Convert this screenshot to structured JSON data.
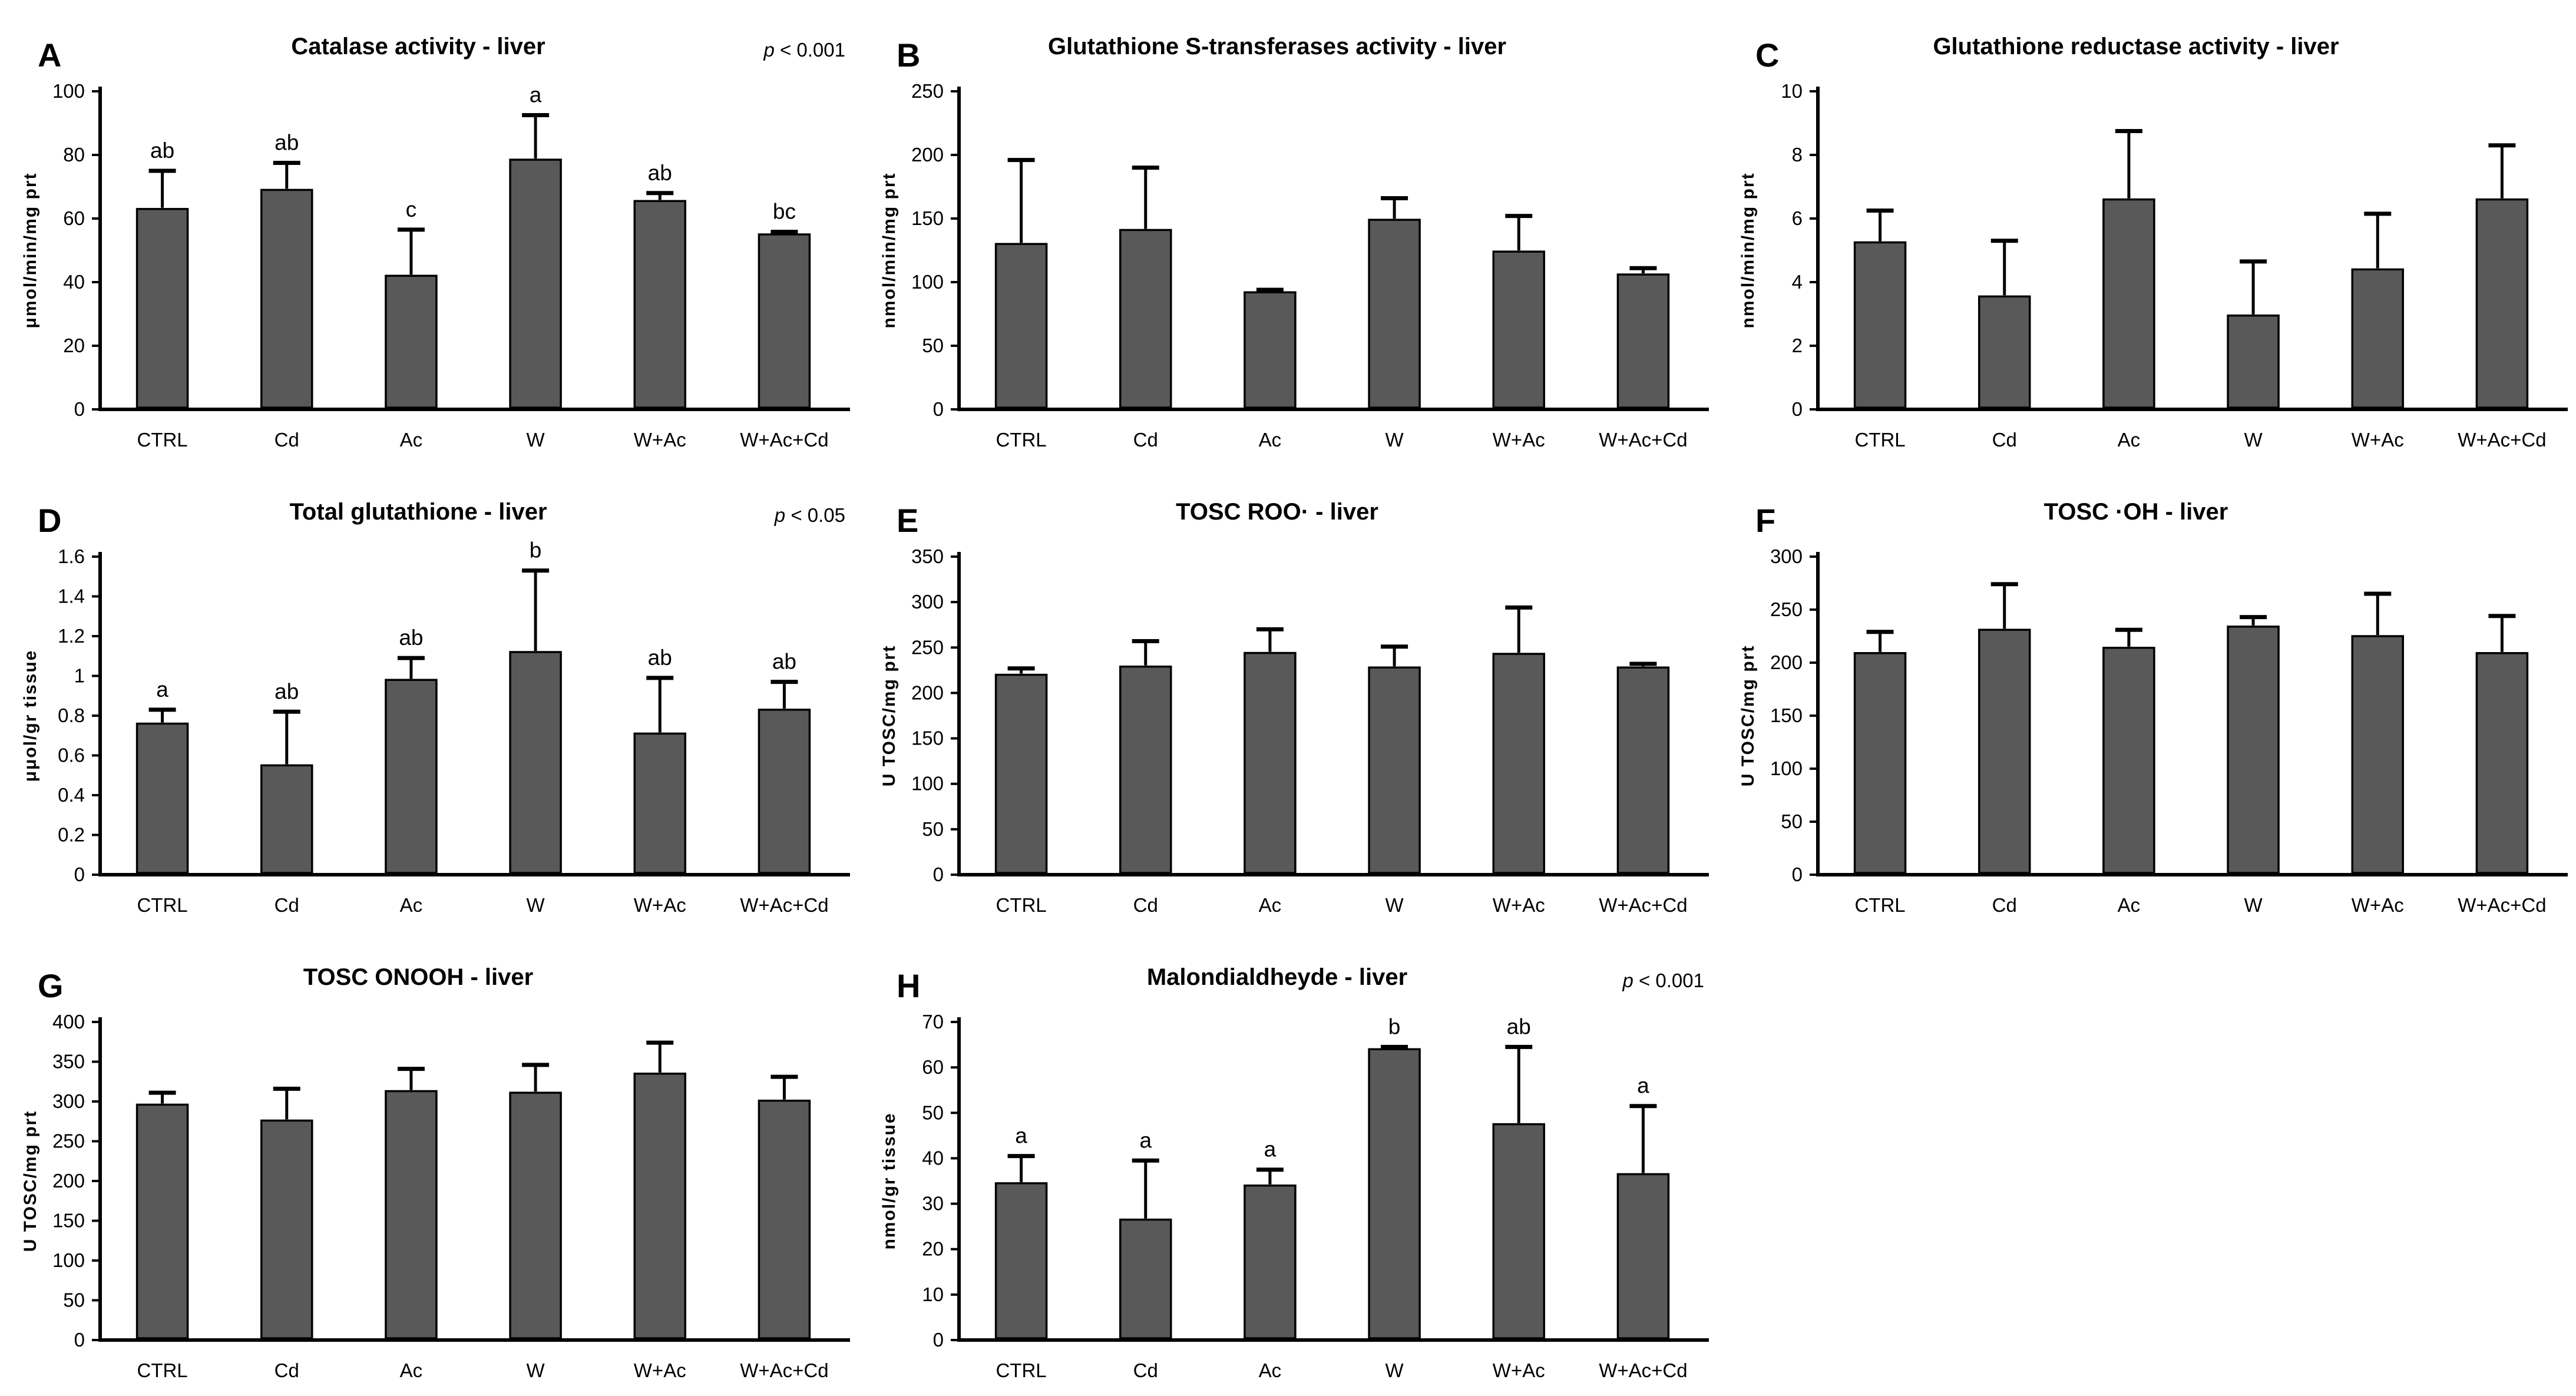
{
  "figure": {
    "bar_fill": "#595959",
    "bar_stroke": "#000000",
    "axis_color": "#000000",
    "text_color": "#000000",
    "background": "#ffffff"
  },
  "chart_data": [
    {
      "panel": "A",
      "type": "bar",
      "title": "Catalase activity - liver",
      "p_label": "p",
      "p_rest": " < 0.001",
      "ylabel": "μmol/min/mg prt",
      "ylim": [
        0,
        100
      ],
      "yticks": [
        0,
        20,
        40,
        60,
        80,
        100
      ],
      "ytick_labels": [
        "0",
        "20",
        "40",
        "60",
        "80",
        "100"
      ],
      "categories": [
        "CTRL",
        "Cd",
        "Ac",
        "W",
        "W+Ac",
        "W+Ac+Cd"
      ],
      "values": [
        63,
        69,
        42,
        78.5,
        65.5,
        55
      ],
      "errors_up": [
        12,
        8.5,
        14.5,
        14,
        2.5,
        0.8
      ],
      "sig_letters": [
        "ab",
        "ab",
        "c",
        "a",
        "ab",
        "bc"
      ],
      "legend": null,
      "grid": "off"
    },
    {
      "panel": "B",
      "type": "bar",
      "title": "Glutathione S-transferases activity - liver",
      "p_label": "",
      "p_rest": "",
      "ylabel": "nmol/min/mg prt",
      "ylim": [
        0,
        250
      ],
      "yticks": [
        0,
        50,
        100,
        150,
        200,
        250
      ],
      "ytick_labels": [
        "0",
        "50",
        "100",
        "150",
        "200",
        "250"
      ],
      "categories": [
        "CTRL",
        "Cd",
        "Ac",
        "W",
        "W+Ac",
        "W+Ac+Cd"
      ],
      "values": [
        130,
        141,
        92,
        149,
        124,
        106
      ],
      "errors_up": [
        66,
        49,
        2,
        17,
        28,
        5
      ],
      "sig_letters": null,
      "legend": null,
      "grid": "off"
    },
    {
      "panel": "C",
      "type": "bar",
      "title": "Glutathione reductase activity - liver",
      "p_label": "",
      "p_rest": "",
      "ylabel": "nmol/min/mg prt",
      "ylim": [
        0,
        10
      ],
      "yticks": [
        0,
        2,
        4,
        6,
        8,
        10
      ],
      "ytick_labels": [
        "0",
        "2",
        "4",
        "6",
        "8",
        "10"
      ],
      "categories": [
        "CTRL",
        "Cd",
        "Ac",
        "W",
        "W+Ac",
        "W+Ac+Cd"
      ],
      "values": [
        5.25,
        3.55,
        6.6,
        2.95,
        4.4,
        6.6
      ],
      "errors_up": [
        1.0,
        1.75,
        2.15,
        1.7,
        1.75,
        1.7
      ],
      "sig_letters": null,
      "legend": null,
      "grid": "off"
    },
    {
      "panel": "D",
      "type": "bar",
      "title": "Total glutathione - liver",
      "p_label": "p",
      "p_rest": " < 0.05",
      "ylabel": "μμol/gr tissue",
      "ylim": [
        0,
        1.6
      ],
      "yticks": [
        0,
        0.2,
        0.4,
        0.6,
        0.8,
        1,
        1.2,
        1.4,
        1.6
      ],
      "ytick_labels": [
        "0",
        "0.2",
        "0.4",
        "0.6",
        "0.8",
        "1",
        "1.2",
        "1.4",
        "1.6"
      ],
      "categories": [
        "CTRL",
        "Cd",
        "Ac",
        "W",
        "W+Ac",
        "W+Ac+Cd"
      ],
      "values": [
        0.76,
        0.55,
        0.98,
        1.12,
        0.71,
        0.83
      ],
      "errors_up": [
        0.07,
        0.27,
        0.11,
        0.41,
        0.28,
        0.14
      ],
      "sig_letters": [
        "a",
        "ab",
        "ab",
        "b",
        "ab",
        "ab"
      ],
      "legend": null,
      "grid": "off"
    },
    {
      "panel": "E",
      "type": "bar",
      "title": "TOSC ROO· - liver",
      "p_label": "",
      "p_rest": "",
      "ylabel": "U TOSC/mg prt",
      "ylim": [
        0,
        350
      ],
      "yticks": [
        0,
        50,
        100,
        150,
        200,
        250,
        300,
        350
      ],
      "ytick_labels": [
        "0",
        "50",
        "100",
        "150",
        "200",
        "250",
        "300",
        "350"
      ],
      "categories": [
        "CTRL",
        "Cd",
        "Ac",
        "W",
        "W+Ac",
        "W+Ac+Cd"
      ],
      "values": [
        220,
        229,
        244,
        228,
        243,
        228
      ],
      "errors_up": [
        7,
        28,
        26,
        23,
        51,
        4
      ],
      "sig_letters": null,
      "legend": null,
      "grid": "off"
    },
    {
      "panel": "F",
      "type": "bar",
      "title": "TOSC ·OH - liver",
      "p_label": "",
      "p_rest": "",
      "ylabel": "U TOSC/mg prt",
      "ylim": [
        0,
        300
      ],
      "yticks": [
        0,
        50,
        100,
        150,
        200,
        250,
        300
      ],
      "ytick_labels": [
        "0",
        "50",
        "100",
        "150",
        "200",
        "250",
        "300"
      ],
      "categories": [
        "CTRL",
        "Cd",
        "Ac",
        "W",
        "W+Ac",
        "W+Ac+Cd"
      ],
      "values": [
        209,
        231,
        214,
        234,
        225,
        209
      ],
      "errors_up": [
        20,
        43,
        17,
        9,
        40,
        35
      ],
      "sig_letters": null,
      "legend": null,
      "grid": "off"
    },
    {
      "panel": "G",
      "type": "bar",
      "title": "TOSC ONOOH - liver",
      "p_label": "",
      "p_rest": "",
      "ylabel": "U TOSC/mg prt",
      "ylim": [
        0,
        400
      ],
      "yticks": [
        0,
        50,
        100,
        150,
        200,
        250,
        300,
        350,
        400
      ],
      "ytick_labels": [
        "0",
        "50",
        "100",
        "150",
        "200",
        "250",
        "300",
        "350",
        "400"
      ],
      "categories": [
        "CTRL",
        "Cd",
        "Ac",
        "W",
        "W+Ac",
        "W+Ac+Cd"
      ],
      "values": [
        296,
        276,
        313,
        311,
        335,
        301
      ],
      "errors_up": [
        15,
        40,
        28,
        35,
        39,
        30
      ],
      "sig_letters": null,
      "legend": null,
      "grid": "off"
    },
    {
      "panel": "H",
      "type": "bar",
      "title": "Malondialdheyde - liver",
      "p_label": "p",
      "p_rest": " < 0.001",
      "ylabel": "nmol/gr tissue",
      "ylim": [
        0,
        70
      ],
      "yticks": [
        0,
        10,
        20,
        30,
        40,
        50,
        60,
        70
      ],
      "ytick_labels": [
        "0",
        "10",
        "20",
        "30",
        "40",
        "50",
        "60",
        "70"
      ],
      "categories": [
        "CTRL",
        "Cd",
        "Ac",
        "W",
        "W+Ac",
        "W+Ac+Cd"
      ],
      "values": [
        34.5,
        26.5,
        34,
        64,
        47.5,
        36.5
      ],
      "errors_up": [
        6,
        13,
        3.5,
        0.5,
        17,
        15
      ],
      "sig_letters": [
        "a",
        "a",
        "a",
        "b",
        "ab",
        "a"
      ],
      "legend": null,
      "grid": "off"
    }
  ]
}
